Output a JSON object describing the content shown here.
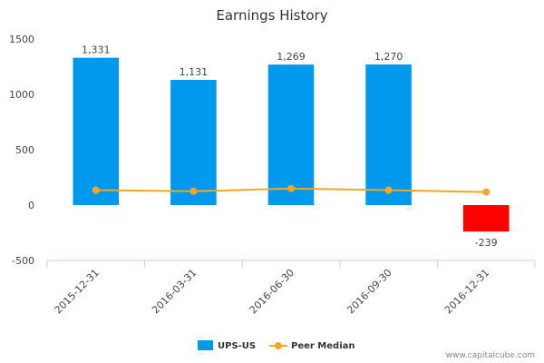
{
  "chart_data": {
    "type": "bar",
    "title": "Earnings History",
    "xlabel": "",
    "ylabel": "",
    "categories": [
      "2015-12-31",
      "2016-03-31",
      "2016-06-30",
      "2016-09-30",
      "2016-12-31"
    ],
    "series": [
      {
        "name": "UPS-US",
        "type": "bar",
        "values": [
          1331,
          1131,
          1269,
          1270,
          -239
        ],
        "labels": [
          "1,331",
          "1,131",
          "1,269",
          "1,270",
          "-239"
        ],
        "color": "#0099ee",
        "negative_color": "#ff0000"
      },
      {
        "name": "Peer Median",
        "type": "line",
        "values": [
          135,
          125,
          150,
          135,
          118
        ],
        "color": "#f5a623"
      }
    ],
    "ylim": [
      -500,
      1500
    ],
    "yticks": [
      "1500",
      "1000",
      "500",
      "0",
      "-500"
    ],
    "ytick_values": [
      1500,
      1000,
      500,
      0,
      -500
    ],
    "grid": false,
    "legend_position": "bottom"
  },
  "credit": "www.capitalcube.com"
}
